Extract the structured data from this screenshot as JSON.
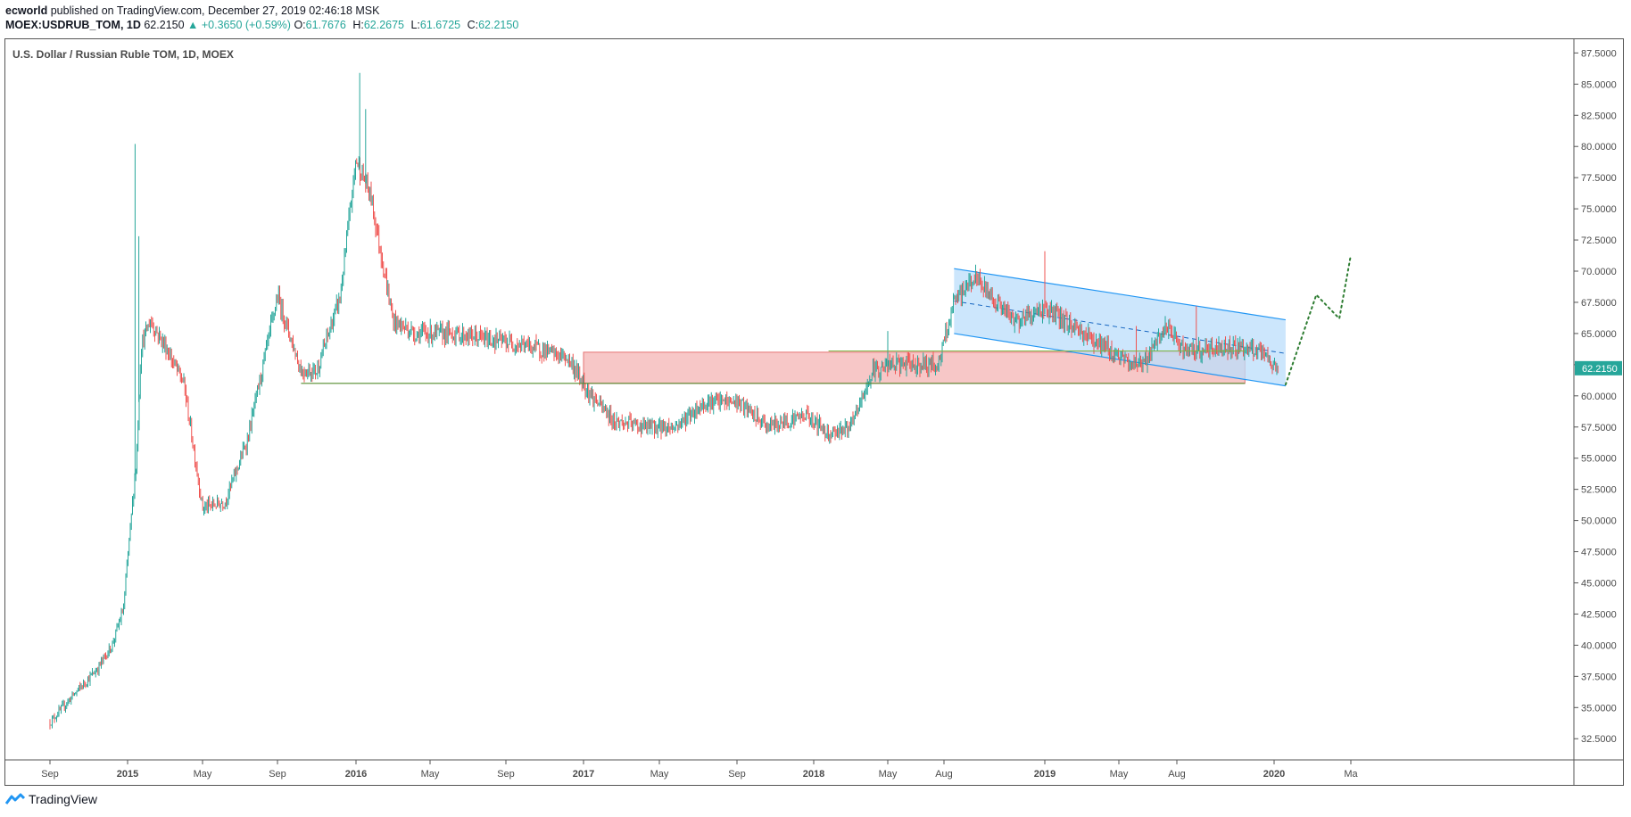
{
  "header": {
    "author": "ecworld",
    "published": "published on TradingView.com, December 27, 2019 02:46:18 MSK",
    "symbol": "MOEX:USDRUB_TOM, 1D",
    "last": "62.2150",
    "change": "▲ +0.3650 (+0.59%)",
    "ohlc": [
      {
        "label": "O:",
        "value": "61.7676"
      },
      {
        "label": "H:",
        "value": "62.2675"
      },
      {
        "label": "L:",
        "value": "61.6725"
      },
      {
        "label": "C:",
        "value": "62.2150"
      }
    ]
  },
  "chart_data": {
    "type": "candlestick",
    "title": "U.S. Dollar / Russian Ruble TOM, 1D, MOEX",
    "ylim": [
      30.8,
      88.6
    ],
    "y_ticks": [
      "32.5000",
      "35.0000",
      "37.5000",
      "40.0000",
      "42.5000",
      "45.0000",
      "47.5000",
      "50.0000",
      "52.5000",
      "55.0000",
      "57.5000",
      "60.0000",
      "62.5000",
      "65.0000",
      "67.5000",
      "70.0000",
      "72.5000",
      "75.0000",
      "77.5000",
      "80.0000",
      "82.5000",
      "85.0000",
      "87.5000"
    ],
    "x_ticks": [
      {
        "label": "Sep",
        "major": false,
        "i": 0
      },
      {
        "label": "2015",
        "major": true,
        "i": 1
      },
      {
        "label": "May",
        "major": false,
        "i": 2
      },
      {
        "label": "Sep",
        "major": false,
        "i": 3
      },
      {
        "label": "2016",
        "major": true,
        "i": 4
      },
      {
        "label": "May",
        "major": false,
        "i": 5
      },
      {
        "label": "Sep",
        "major": false,
        "i": 6
      },
      {
        "label": "2017",
        "major": true,
        "i": 7
      },
      {
        "label": "May",
        "major": false,
        "i": 8
      },
      {
        "label": "Sep",
        "major": false,
        "i": 9
      },
      {
        "label": "2018",
        "major": true,
        "i": 10
      },
      {
        "label": "May",
        "major": false,
        "i": 11
      },
      {
        "label": "Aug",
        "major": false,
        "i": 12
      },
      {
        "label": "2019",
        "major": true,
        "i": 13
      },
      {
        "label": "May",
        "major": false,
        "i": 14
      },
      {
        "label": "Aug",
        "major": false,
        "i": 15
      },
      {
        "label": "2020",
        "major": true,
        "i": 16
      },
      {
        "label": "Ma",
        "major": false,
        "i": 17
      }
    ],
    "price_path": [
      [
        0,
        33.8
      ],
      [
        0.3,
        36.0
      ],
      [
        0.6,
        38.0
      ],
      [
        0.8,
        40.0
      ],
      [
        0.95,
        43.0
      ],
      [
        1.0,
        47.0
      ],
      [
        1.06,
        51.0
      ],
      [
        1.12,
        55.0
      ],
      [
        1.18,
        64.0
      ],
      [
        1.3,
        66.0
      ],
      [
        1.5,
        64.0
      ],
      [
        1.75,
        61.0
      ],
      [
        2.0,
        51.0
      ],
      [
        2.3,
        51.5
      ],
      [
        2.6,
        56.5
      ],
      [
        3.0,
        68.0
      ],
      [
        3.3,
        62.0
      ],
      [
        3.5,
        62.0
      ],
      [
        3.8,
        68.0
      ],
      [
        4.0,
        79.0
      ],
      [
        4.2,
        76.0
      ],
      [
        4.5,
        66.0
      ],
      [
        4.8,
        65.0
      ],
      [
        5.3,
        65.0
      ],
      [
        5.8,
        64.5
      ],
      [
        6.3,
        64.0
      ],
      [
        6.8,
        63.0
      ],
      [
        7.1,
        60.0
      ],
      [
        7.4,
        58.0
      ],
      [
        7.8,
        57.5
      ],
      [
        8.2,
        57.5
      ],
      [
        8.6,
        59.5
      ],
      [
        9.0,
        59.5
      ],
      [
        9.4,
        57.5
      ],
      [
        9.9,
        58.5
      ],
      [
        10.2,
        57.0
      ],
      [
        10.5,
        57.5
      ],
      [
        10.8,
        62.0
      ],
      [
        11.1,
        62.5
      ],
      [
        11.5,
        62.5
      ],
      [
        11.9,
        62.5
      ],
      [
        12.1,
        67.5
      ],
      [
        12.3,
        69.5
      ],
      [
        12.7,
        66.0
      ],
      [
        13.0,
        67.0
      ],
      [
        13.4,
        65.5
      ],
      [
        13.8,
        64.0
      ],
      [
        14.2,
        62.5
      ],
      [
        14.5,
        63.0
      ],
      [
        14.8,
        65.5
      ],
      [
        15.1,
        63.5
      ],
      [
        15.6,
        64.0
      ],
      [
        15.85,
        63.5
      ],
      [
        16.05,
        62.2
      ]
    ],
    "spikes": [
      {
        "i": 1.1,
        "high": 80.2
      },
      {
        "i": 1.15,
        "high": 72.8
      },
      {
        "i": 4.05,
        "high": 85.9
      },
      {
        "i": 4.13,
        "high": 83.0
      },
      {
        "i": 13.0,
        "high": 71.6
      },
      {
        "i": 11.0,
        "high": 65.2
      },
      {
        "i": 14.3,
        "high": 65.6
      },
      {
        "i": 15.2,
        "high": 67.2
      }
    ],
    "channel": {
      "upper": [
        [
          12.1,
          70.2
        ],
        [
          16.15,
          66.1
        ]
      ],
      "lower": [
        [
          12.1,
          65.0
        ],
        [
          16.15,
          60.8
        ]
      ],
      "mid": [
        [
          12.1,
          67.6
        ],
        [
          16.15,
          63.4
        ]
      ]
    },
    "zone": {
      "x": [
        7.0,
        15.7
      ],
      "y": [
        61.0,
        63.5
      ]
    },
    "support_line": {
      "x": [
        3.3,
        15.7
      ],
      "y": 61.0
    },
    "resistance_line": {
      "x": [
        10.2,
        15.7
      ],
      "y": 63.6
    },
    "projection": [
      [
        16.15,
        60.9
      ],
      [
        16.55,
        68.1
      ],
      [
        16.85,
        66.2
      ],
      [
        17.1,
        71.3
      ]
    ],
    "last_price_label": "62.2150",
    "colors": {
      "up": "#26a69a",
      "down": "#ef5350",
      "channel": "#2196f3",
      "channel_fill": "#bbdefb",
      "zone": "#f4b4b4",
      "zone_border": "#e57373",
      "support": "#558b2f",
      "projection": "#2e7d32",
      "last_price_bg": "#26a69a"
    }
  },
  "footer": {
    "brand": "TradingView"
  }
}
